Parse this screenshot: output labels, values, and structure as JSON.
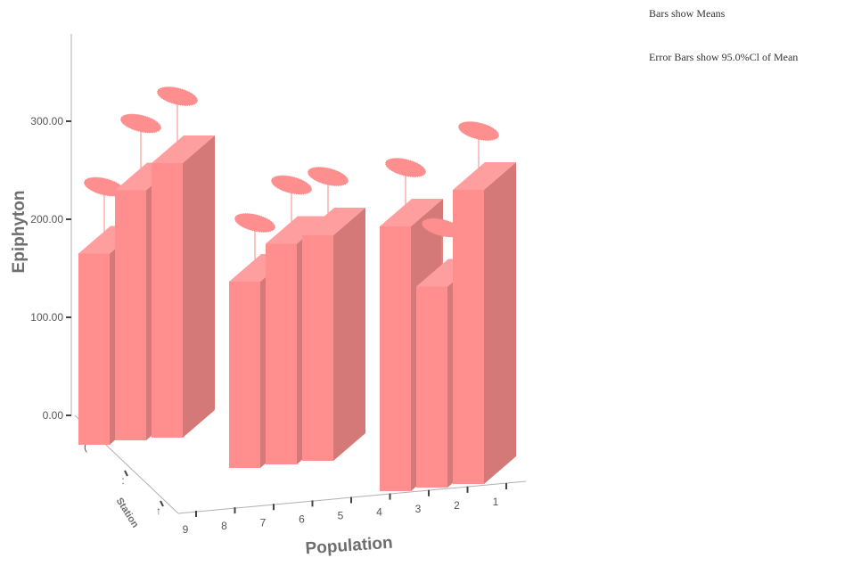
{
  "notes": {
    "bars_note": "Bars show Means",
    "error_note": "Error Bars show 95.0%Cl of Mean"
  },
  "colors": {
    "front": "#ff8e8e",
    "side": "#d47878",
    "top": "#ff9e9e",
    "error": "#f08a8a",
    "axis": "#b0b0b0",
    "tick": "#444444"
  },
  "chart_data": {
    "type": "bar",
    "subtype": "3d-clustered",
    "xlabel": "Population",
    "ylabel": "Epiphyton",
    "zlabel": "Station",
    "ylim": [
      0,
      380
    ],
    "y_ticks": [
      "0.00",
      "100.00",
      "200.00",
      "300.00"
    ],
    "categories": [
      "9",
      "8",
      "7",
      "6",
      "5",
      "4",
      "3",
      "2",
      "1"
    ],
    "station_ticks": [
      "(",
      ":",
      "↑"
    ],
    "bars": [
      {
        "population": "9",
        "value": 195,
        "error": 18
      },
      {
        "population": "8",
        "value": 255,
        "error": 18
      },
      {
        "population": "7",
        "value": 280,
        "error": 18
      },
      {
        "population": "6",
        "value": 190,
        "error": 15
      },
      {
        "population": "5",
        "value": 225,
        "error": 15
      },
      {
        "population": "4",
        "value": 230,
        "error": 15
      },
      {
        "population": "3",
        "value": 270,
        "error": 15
      },
      {
        "population": "2",
        "value": 205,
        "error": 15
      },
      {
        "population": "1",
        "value": 300,
        "error": 15
      }
    ]
  }
}
